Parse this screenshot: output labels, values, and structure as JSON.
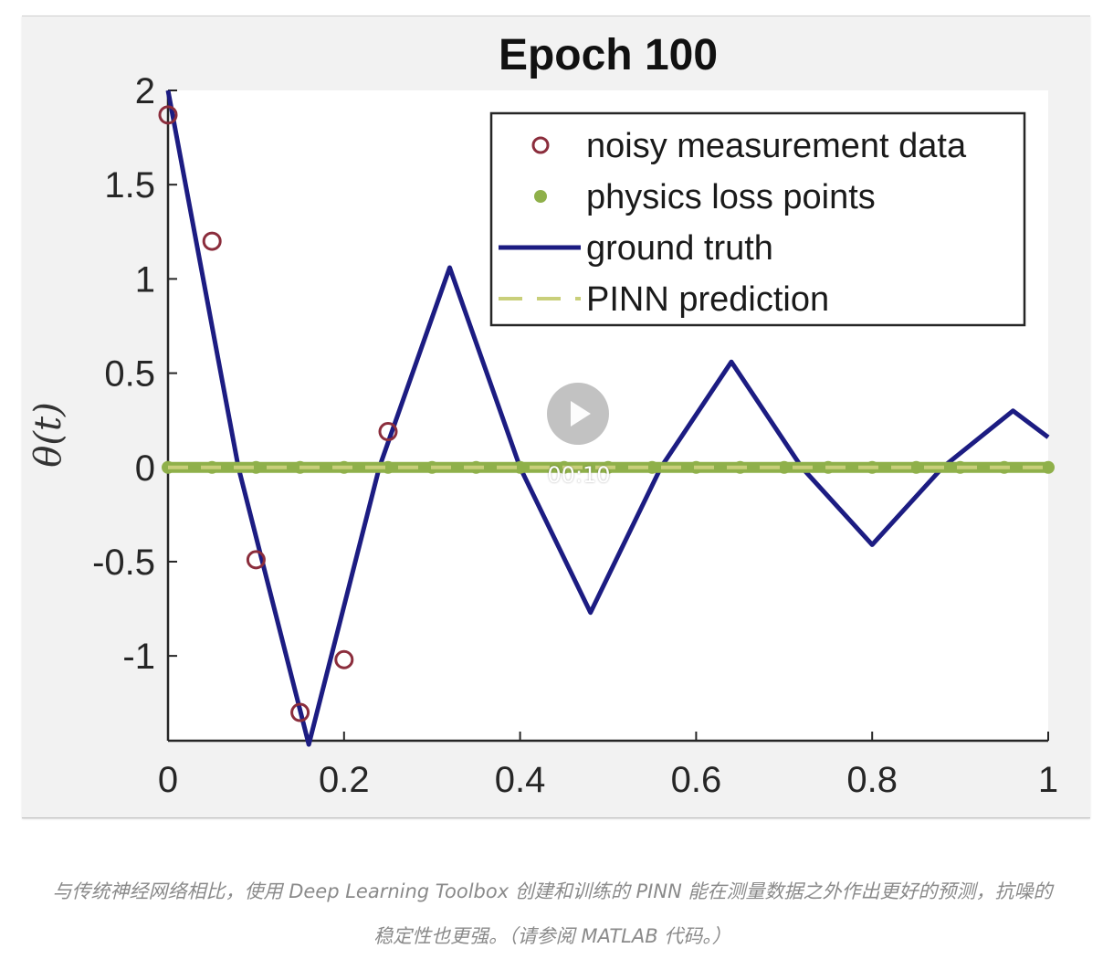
{
  "chart_data": {
    "type": "line",
    "title": "Epoch 100",
    "xlabel": "",
    "ylabel": "θ(t)",
    "xlim": [
      0,
      1
    ],
    "ylim": [
      -1.45,
      2
    ],
    "xticks": [
      0,
      0.2,
      0.4,
      0.6,
      0.8,
      1
    ],
    "xtick_labels": [
      "0",
      "0.2",
      "0.4",
      "0.6",
      "0.8",
      "1"
    ],
    "yticks": [
      2,
      1.5,
      1,
      0.5,
      0,
      -0.5,
      -1
    ],
    "ytick_labels": [
      "2",
      "1.5",
      "1",
      "0.5",
      "0",
      "-0.5",
      "-1"
    ],
    "grid": false,
    "legend_position": "top-right",
    "legend": [
      "noisy measurement data",
      "physics loss points",
      "ground truth",
      "PINN prediction"
    ],
    "series": [
      {
        "name": "noisy measurement data",
        "style": "markers-circle",
        "color": "#8b2d3c",
        "x": [
          0,
          0.05,
          0.1,
          0.15,
          0.2,
          0.25
        ],
        "y": [
          1.87,
          1.2,
          -0.49,
          -1.3,
          -1.02,
          0.19
        ]
      },
      {
        "name": "physics loss points",
        "style": "markers-dot",
        "color": "#8fb04a",
        "x": [
          0,
          0.05,
          0.1,
          0.15,
          0.2,
          0.25,
          0.3,
          0.35,
          0.4,
          0.45,
          0.5,
          0.55,
          0.6,
          0.65,
          0.7,
          0.75,
          0.8,
          0.85,
          0.9,
          0.95,
          1
        ],
        "y": [
          0,
          0,
          0,
          0,
          0,
          0,
          0,
          0,
          0,
          0,
          0,
          0,
          0,
          0,
          0,
          0,
          0,
          0,
          0,
          0,
          0
        ]
      },
      {
        "name": "ground truth",
        "style": "line",
        "color": "#1c1c82",
        "x": [
          0,
          0.08,
          0.16,
          0.24,
          0.32,
          0.4,
          0.48,
          0.56,
          0.64,
          0.72,
          0.8,
          0.88,
          0.96,
          1
        ],
        "y": [
          2.0,
          0.0,
          -1.47,
          0.0,
          1.06,
          0.0,
          -0.77,
          0.0,
          0.56,
          0.0,
          -0.41,
          0.0,
          0.3,
          0.16
        ]
      },
      {
        "name": "PINN prediction",
        "style": "dashed-line",
        "color": "#c9cf7a",
        "x": [
          0,
          1
        ],
        "y": [
          0,
          0
        ]
      }
    ]
  },
  "video_overlay": {
    "time": "00:10",
    "icon": "play-icon"
  },
  "caption": {
    "line1": "与传统神经网络相比，使用 Deep Learning Toolbox 创建和训练的 PINN 能在测量数据之外作出更好的预测，抗噪的",
    "line2": "稳定性也更强。（请参阅 MATLAB 代码。）"
  }
}
